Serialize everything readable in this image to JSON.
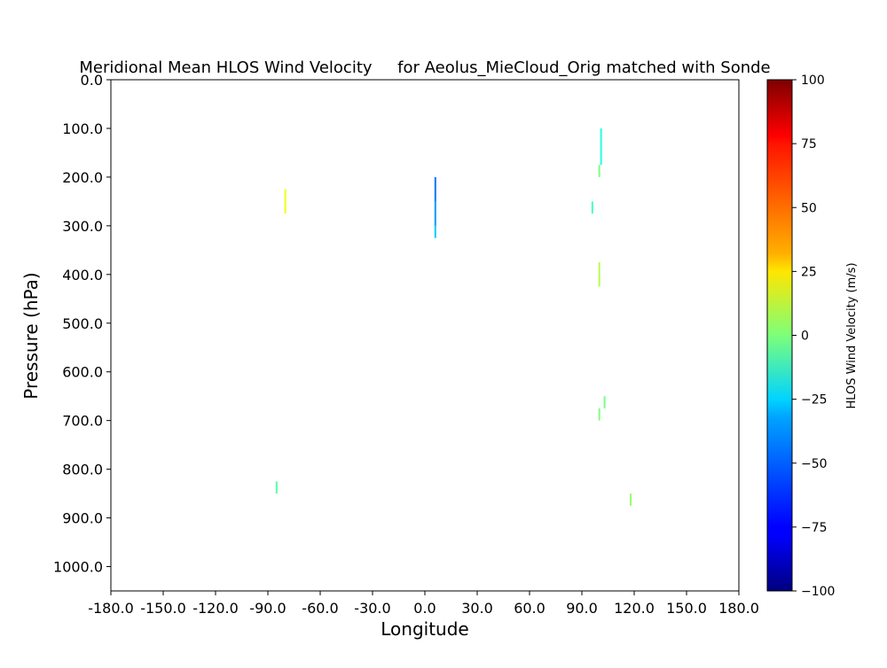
{
  "chart_data": {
    "type": "heatmap",
    "title": "Meridional Mean HLOS Wind Velocity     for Aeolus_MieCloud_Orig matched with Sonde",
    "xlabel": "Longitude",
    "ylabel": "Pressure (hPa)",
    "xlim": [
      -180,
      180
    ],
    "ylim": [
      0,
      1050
    ],
    "y_inverted": true,
    "x_ticks": [
      "-180.0",
      "-150.0",
      "-120.0",
      "-90.0",
      "-60.0",
      "-30.0",
      "0.0",
      "30.0",
      "60.0",
      "90.0",
      "120.0",
      "150.0",
      "180.0"
    ],
    "y_ticks": [
      "0.0",
      "100.0",
      "200.0",
      "300.0",
      "400.0",
      "500.0",
      "600.0",
      "700.0",
      "800.0",
      "900.0",
      "1000.0"
    ],
    "grid": false,
    "colorbar": {
      "label": "HLOS Wind Velocity (m/s)",
      "range": [
        -100,
        100
      ],
      "ticks": [
        "100",
        "75",
        "50",
        "25",
        "0",
        "−25",
        "−50",
        "−75",
        "−100"
      ],
      "colormap": "jet"
    },
    "cells": [
      {
        "lon": -80,
        "p_top": 225,
        "p_bottom": 275,
        "value": 22
      },
      {
        "lon": -85,
        "p_top": 825,
        "p_bottom": 850,
        "value": -8
      },
      {
        "lon": 6,
        "p_top": 200,
        "p_bottom": 250,
        "value": -52
      },
      {
        "lon": 6,
        "p_top": 250,
        "p_bottom": 300,
        "value": -45
      },
      {
        "lon": 6,
        "p_top": 300,
        "p_bottom": 325,
        "value": -35
      },
      {
        "lon": 101,
        "p_top": 100,
        "p_bottom": 175,
        "value": -18
      },
      {
        "lon": 100,
        "p_top": 175,
        "p_bottom": 200,
        "value": 0
      },
      {
        "lon": 96,
        "p_top": 250,
        "p_bottom": 275,
        "value": -12
      },
      {
        "lon": 100,
        "p_top": 375,
        "p_bottom": 425,
        "value": 10
      },
      {
        "lon": 103,
        "p_top": 650,
        "p_bottom": 675,
        "value": -2
      },
      {
        "lon": 100,
        "p_top": 675,
        "p_bottom": 700,
        "value": 0
      },
      {
        "lon": 118,
        "p_top": 850,
        "p_bottom": 875,
        "value": 4
      }
    ]
  }
}
